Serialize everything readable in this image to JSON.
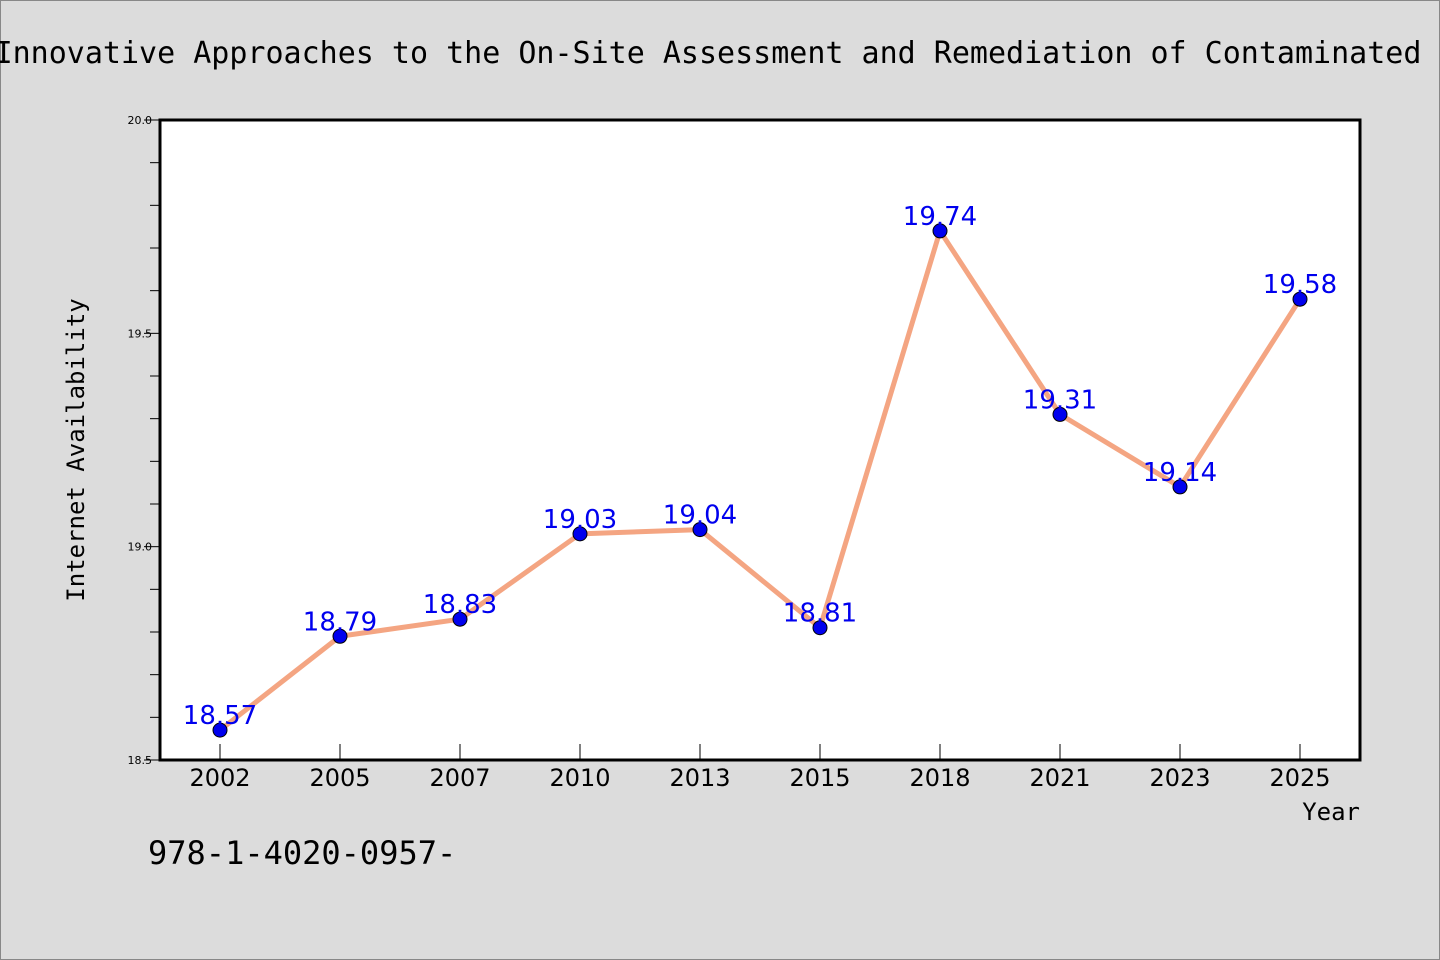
{
  "chart_data": {
    "type": "line",
    "title": "Innovative Approaches to the On-Site Assessment and Remediation of Contaminated",
    "xlabel": "Year",
    "ylabel": "Internet Availability",
    "categories": [
      "2002",
      "2005",
      "2007",
      "2010",
      "2013",
      "2015",
      "2018",
      "2021",
      "2023",
      "2025"
    ],
    "series": [
      {
        "values": [
          18.57,
          18.79,
          18.83,
          19.03,
          19.04,
          18.81,
          19.74,
          19.31,
          19.14,
          19.58
        ],
        "labels": [
          "18.57",
          "18.79",
          "18.83",
          "19.03",
          "19.04",
          "18.81",
          "19.74",
          "19.31",
          "19.14",
          "19.58"
        ],
        "line_color": "#f4a582",
        "marker_color": "#0000ee",
        "label_color": "#0000ee"
      }
    ],
    "ylim": [
      18.5,
      20.0
    ],
    "ytick_labels": [
      "18.5",
      "19.0",
      "19.5",
      "20.0"
    ],
    "grid": false,
    "legend": "none"
  },
  "footnote": "978-1-4020-0957-",
  "colors": {
    "background": "#dcdcdc",
    "plot_area": "#ffffff",
    "axis": "#000000"
  }
}
